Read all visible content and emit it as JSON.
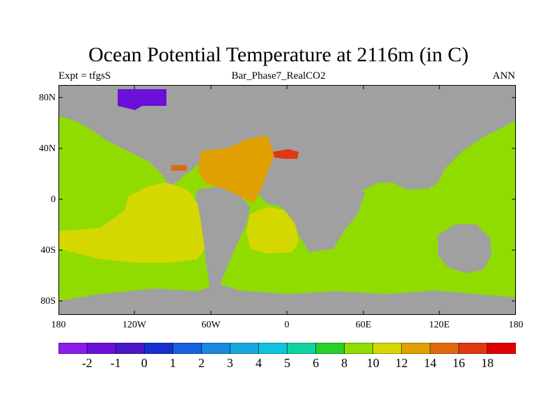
{
  "title": "Ocean Potential Temperature at 2116m (in C)",
  "subtitle_left": "Expt = tfgsS",
  "subtitle_center": "Bar_Phase7_RealCO2",
  "subtitle_right": "ANN",
  "lat_ticks": [
    "80N",
    "40N",
    "0",
    "40S",
    "80S"
  ],
  "lon_ticks": [
    "180",
    "120W",
    "60W",
    "0",
    "60E",
    "120E",
    "180"
  ],
  "colorbar": {
    "labels": [
      "-2",
      "-1",
      "0",
      "1",
      "2",
      "3",
      "4",
      "5",
      "6",
      "8",
      "10",
      "12",
      "14",
      "16",
      "18"
    ],
    "colors": [
      "#8a1ee8",
      "#6a10d8",
      "#4a18c8",
      "#1830d0",
      "#1860e0",
      "#1a8ae0",
      "#18a8e0",
      "#10c4e0",
      "#10d4a0",
      "#28d028",
      "#90dc00",
      "#d4d800",
      "#e0a000",
      "#e06a10",
      "#e03810",
      "#e00000"
    ]
  },
  "colors": {
    "land": "#a0a0a0",
    "ocean_cool": "#90dc00",
    "ocean_yellow": "#d4d800",
    "ocean_orange": "#e0a000",
    "ocean_red": "#e03810",
    "arctic_purple": "#6a10d8"
  }
}
